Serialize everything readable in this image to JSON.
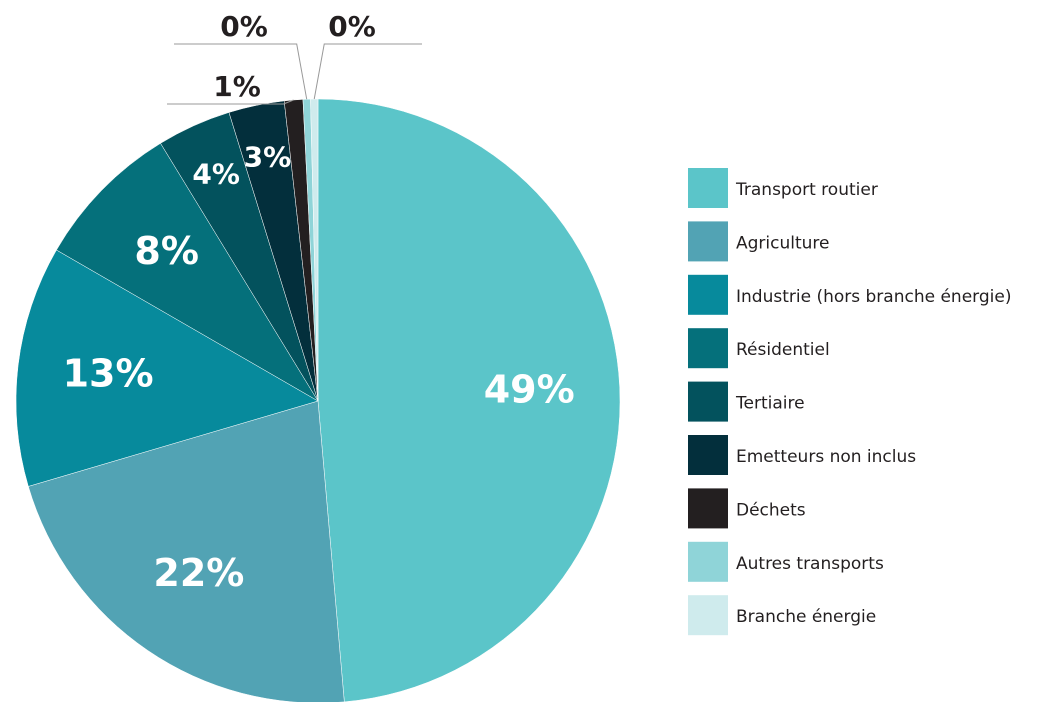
{
  "chart_data": {
    "type": "pie",
    "categories": [
      "Transport routier",
      "Agriculture",
      "Industrie (hors branche énergie)",
      "Résidentiel",
      "Tertiaire",
      "Emetteurs non inclus",
      "Déchets",
      "Autres transports",
      "Branche énergie"
    ],
    "values": [
      49,
      22,
      13,
      8,
      4,
      3,
      1,
      0.4,
      0.4
    ],
    "value_labels": [
      "49%",
      "22%",
      "13%",
      "8%",
      "4%",
      "3%",
      "1%",
      "0%",
      "0%"
    ],
    "colors": [
      "#5bc5c9",
      "#52a3b4",
      "#078a9c",
      "#05707b",
      "#03525d",
      "#032f3c",
      "#231f20",
      "#8fd4d8",
      "#cfebed"
    ],
    "legend": "right"
  }
}
